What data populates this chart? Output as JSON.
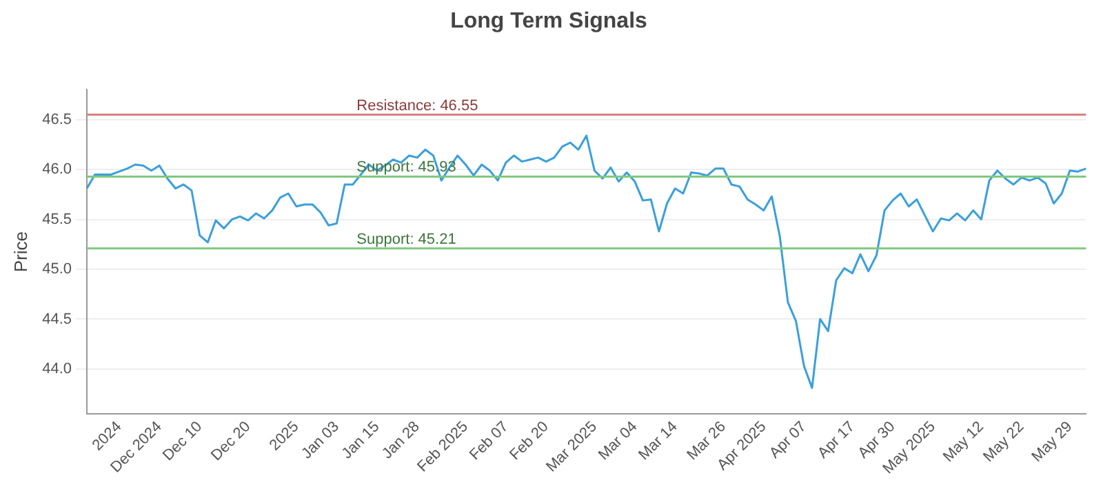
{
  "chart_data": {
    "type": "line",
    "title": "Long Term Signals",
    "ylabel": "Price",
    "categories": [
      null,
      null,
      null,
      null,
      "2024",
      null,
      null,
      null,
      null,
      "Dec 2024",
      null,
      null,
      null,
      null,
      "Dec 10",
      null,
      null,
      null,
      null,
      null,
      "Dec 20",
      null,
      null,
      null,
      null,
      null,
      "2025",
      null,
      null,
      null,
      null,
      "Jan 03",
      null,
      null,
      null,
      null,
      "Jan 15",
      null,
      null,
      null,
      null,
      "Jan 28",
      null,
      null,
      null,
      null,
      null,
      "Feb 2025",
      null,
      null,
      null,
      null,
      "Feb 07",
      null,
      null,
      null,
      null,
      "Feb 20",
      null,
      null,
      null,
      null,
      null,
      "Mar 2025",
      null,
      null,
      null,
      null,
      "Mar 04",
      null,
      null,
      null,
      null,
      "Mar 14",
      null,
      null,
      null,
      null,
      null,
      "Mar 26",
      null,
      null,
      null,
      null,
      "Apr 2025",
      null,
      null,
      null,
      null,
      "Apr 07",
      null,
      null,
      null,
      null,
      null,
      "Apr 17",
      null,
      null,
      null,
      null,
      "Apr 30",
      null,
      null,
      null,
      null,
      "May 2025",
      null,
      null,
      null,
      null,
      null,
      "May 12",
      null,
      null,
      null,
      null,
      "May 22",
      null,
      null,
      null,
      null,
      null,
      "May 29",
      null,
      null
    ],
    "series": [
      {
        "color": "#3a9fdc",
        "values": [
          45.81,
          45.95,
          45.95,
          45.95,
          45.98,
          46.01,
          46.05,
          46.04,
          45.99,
          46.04,
          45.91,
          45.81,
          45.85,
          45.79,
          45.34,
          45.27,
          45.49,
          45.41,
          45.5,
          45.53,
          45.49,
          45.56,
          45.51,
          45.59,
          45.72,
          45.76,
          45.63,
          45.65,
          45.65,
          45.57,
          45.44,
          45.46,
          45.85,
          45.85,
          45.95,
          46.05,
          45.99,
          46.04,
          46.1,
          46.07,
          46.14,
          46.12,
          46.2,
          46.14,
          45.89,
          46.02,
          46.14,
          46.05,
          45.94,
          46.05,
          45.99,
          45.89,
          46.07,
          46.14,
          46.08,
          46.1,
          46.12,
          46.08,
          46.12,
          46.23,
          46.27,
          46.2,
          46.34,
          45.99,
          45.91,
          46.02,
          45.88,
          45.97,
          45.88,
          45.69,
          45.7,
          45.38,
          45.66,
          45.81,
          45.76,
          45.97,
          45.96,
          45.94,
          46.01,
          46.01,
          45.85,
          45.83,
          45.7,
          45.65,
          45.59,
          45.73,
          45.33,
          44.67,
          44.48,
          44.03,
          43.81,
          44.5,
          44.38,
          44.89,
          45.01,
          44.96,
          45.15,
          44.98,
          45.14,
          45.59,
          45.69,
          45.76,
          45.63,
          45.7,
          45.54,
          45.38,
          45.51,
          45.49,
          45.56,
          45.49,
          45.59,
          45.5,
          45.89,
          45.99,
          45.91,
          45.85,
          45.92,
          45.89,
          45.92,
          45.86,
          45.66,
          45.76,
          45.99,
          45.98,
          46.01
        ]
      }
    ],
    "ylim": [
      43.55,
      46.8
    ],
    "yticks": [
      {
        "value": 44,
        "label": "44.0"
      },
      44.5,
      {
        "value": 45,
        "label": "45.0"
      },
      45.5,
      {
        "value": 46,
        "label": "46.0"
      },
      46.5
    ],
    "ref_lines": [
      {
        "axis": "y",
        "value": 46.55,
        "label": "Resistance: 46.55",
        "color": "#d98080"
      },
      {
        "axis": "y",
        "value": 45.93,
        "label": "Support: 45.93",
        "color": "#80c880"
      },
      {
        "axis": "y",
        "value": 45.21,
        "label": "Support: 45.21",
        "color": "#80c880"
      }
    ],
    "grid": "y",
    "legend": false,
    "marker": "none",
    "line_style": "solid"
  }
}
